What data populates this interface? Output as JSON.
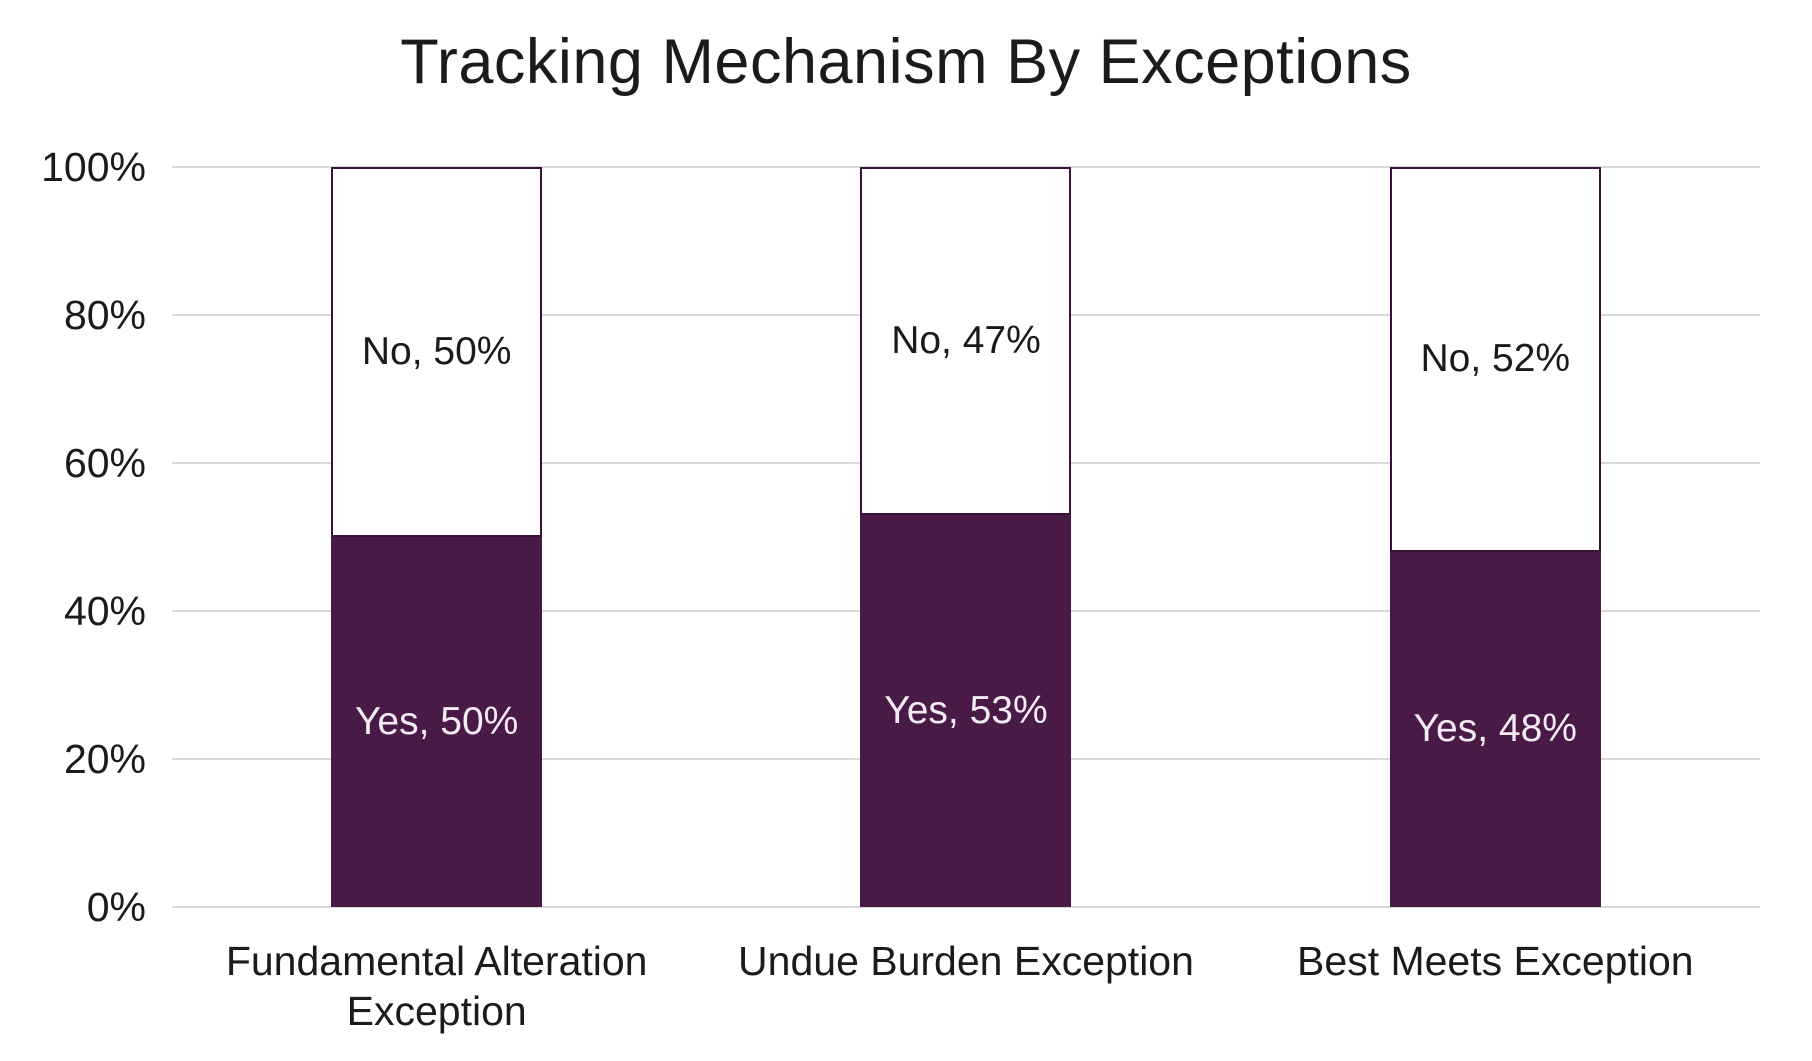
{
  "chart_data": {
    "type": "bar",
    "stacked": true,
    "percent_stacked": true,
    "title": "Tracking Mechanism By Exceptions",
    "categories": [
      "Fundamental Alteration Exception",
      "Undue Burden Exception",
      "Best Meets Exception"
    ],
    "series": [
      {
        "name": "Yes",
        "values": [
          50,
          53,
          48
        ]
      },
      {
        "name": "No",
        "values": [
          50,
          47,
          52
        ]
      }
    ],
    "data_labels": {
      "yes": [
        "Yes, 50%",
        "Yes, 53%",
        "Yes, 48%"
      ],
      "no": [
        "No, 50%",
        "No, 47%",
        "No, 52%"
      ]
    },
    "xlabel": "",
    "ylabel": "",
    "ylim": [
      0,
      100
    ],
    "yticks": [
      0,
      20,
      40,
      60,
      80,
      100
    ],
    "ytick_labels": [
      "0%",
      "20%",
      "40%",
      "60%",
      "80%",
      "100%"
    ],
    "grid": true,
    "legend": "none",
    "colors": {
      "bar_fill": "#491a46",
      "bar_border": "#3a1237",
      "no_fill": "#ffffff",
      "gridline": "#d9d9d9",
      "title_text": "#1b1b1b",
      "axis_text": "#1b1b1b",
      "yes_label_text": "#f3ecf2",
      "no_label_text": "#1a1a1a"
    }
  }
}
